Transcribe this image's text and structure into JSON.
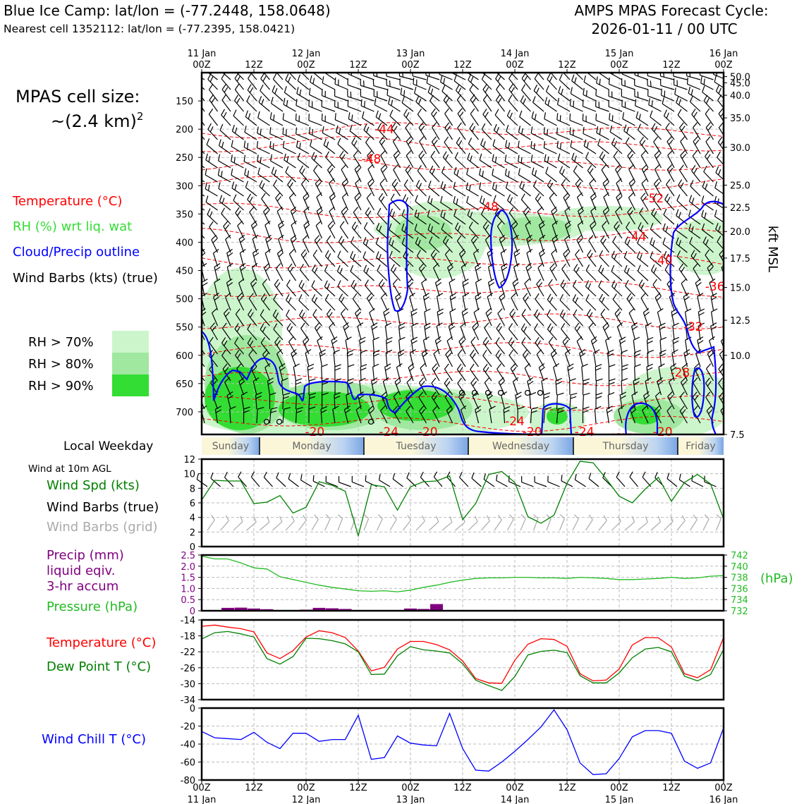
{
  "header": {
    "title": "Blue Ice Camp: lat/lon = (-77.2448, 158.0648)",
    "subtitle": "Nearest cell 1352112: lat/lon = (-77.2395, 158.0421)",
    "cycle_line1": "AMPS MPAS Forecast Cycle:",
    "cycle_line2": "2026-01-11 / 00 UTC"
  },
  "labels": {
    "cell_size_line1": "MPAS cell size:",
    "cell_size_line2": "~(2.4 km)",
    "cell_size_exp": "2",
    "legend_temperature": "Temperature (°C)",
    "legend_rh": "RH (%) wrt liq. wat",
    "legend_cloud": "Cloud/Precip outline",
    "legend_barbs": "Wind Barbs (kts) (true)",
    "rh70": "RH > 70%",
    "rh80": "RH > 80%",
    "rh90": "RH > 90%",
    "kft_axis": "kft MSL",
    "local_weekday": "Local Weekday",
    "wind10m": "Wind at 10m AGL",
    "wind_spd": "Wind Spd (kts)",
    "wind_barbs_true": "Wind Barbs (true)",
    "wind_barbs_grid": "Wind Barbs (grid)",
    "precip_1": "Precip (mm)",
    "precip_2": "liquid eqiv.",
    "precip_3": "3-hr accum",
    "pressure": "Pressure (hPa)",
    "hpa_unit": "(hPa)",
    "temp": "Temperature (°C)",
    "dew": "Dew Point T (°C)",
    "windchill": "Wind Chill T (°C)"
  },
  "colors": {
    "temperature": "#ff0000",
    "rh_text": "#33dd33",
    "cloud": "#0000ff",
    "wind_spd": "#008000",
    "precip": "#800080",
    "pressure": "#22bb22",
    "dew": "#008000",
    "windchill": "#0000ff",
    "rh70": "#ccf5cc",
    "rh80": "#a0e8a0",
    "rh90": "#33dd33",
    "grid_barbs": "#aaaaaa"
  },
  "chart_data": [
    {
      "type": "cross-section",
      "title": "Time-height cross-section",
      "x_top_labels": [
        {
          "day": "11 Jan",
          "time": "00Z"
        },
        {
          "day": "",
          "time": "12Z"
        },
        {
          "day": "12 Jan",
          "time": "00Z"
        },
        {
          "day": "",
          "time": "12Z"
        },
        {
          "day": "13 Jan",
          "time": "00Z"
        },
        {
          "day": "",
          "time": "12Z"
        },
        {
          "day": "14 Jan",
          "time": "00Z"
        },
        {
          "day": "",
          "time": "12Z"
        },
        {
          "day": "15 Jan",
          "time": "00Z"
        },
        {
          "day": "",
          "time": "12Z"
        },
        {
          "day": "16 Jan",
          "time": "00Z"
        }
      ],
      "xlim_hours": [
        0,
        120
      ],
      "pressure_ticks": [
        150,
        200,
        250,
        300,
        350,
        400,
        450,
        500,
        550,
        600,
        650,
        700
      ],
      "ylim_hpa": [
        100,
        740
      ],
      "kft_ticks": [
        {
          "p": 107.0,
          "label": "50.0"
        },
        {
          "p": 118.0,
          "label": "45.0"
        },
        {
          "p": 140.0,
          "label": "40.0"
        },
        {
          "p": 180.0,
          "label": "35.0"
        },
        {
          "p": 232.0,
          "label": "30.0"
        },
        {
          "p": 299.0,
          "label": "25.0"
        },
        {
          "p": 338.0,
          "label": "22.5"
        },
        {
          "p": 381.0,
          "label": "20.0"
        },
        {
          "p": 428.0,
          "label": "17.5"
        },
        {
          "p": 480.0,
          "label": "15.0"
        },
        {
          "p": 538.0,
          "label": "12.5"
        },
        {
          "p": 600.0,
          "label": "10.0"
        },
        {
          "p": 740.0,
          "label": "7.5"
        }
      ],
      "temperature_labels": [
        {
          "t": 42,
          "p": 200,
          "text": "-44"
        },
        {
          "t": 39,
          "p": 252,
          "text": "-48"
        },
        {
          "t": 66,
          "p": 337,
          "text": "-48"
        },
        {
          "t": 104,
          "p": 322,
          "text": "-52"
        },
        {
          "t": 100,
          "p": 390,
          "text": "-44"
        },
        {
          "t": 106,
          "p": 432,
          "text": "-40"
        },
        {
          "t": 118,
          "p": 478,
          "text": "-36"
        },
        {
          "t": 113,
          "p": 549,
          "text": "-32"
        },
        {
          "t": 110,
          "p": 630,
          "text": "-28"
        },
        {
          "t": 72,
          "p": 716,
          "text": "-24"
        },
        {
          "t": 26,
          "p": 762,
          "text": "-20"
        },
        {
          "t": 43,
          "p": 778,
          "text": "-24"
        },
        {
          "t": 52,
          "p": 774,
          "text": "-20"
        },
        {
          "t": 76,
          "p": 772,
          "text": "-20"
        },
        {
          "t": 88,
          "p": 778,
          "text": "-24"
        },
        {
          "t": 106,
          "p": 772,
          "text": "-20"
        }
      ]
    },
    {
      "type": "line",
      "title": "Wind Spd (kts)",
      "x_hours": [
        0,
        3,
        6,
        9,
        12,
        15,
        18,
        21,
        24,
        27,
        30,
        33,
        36,
        39,
        42,
        45,
        48,
        51,
        54,
        57,
        60,
        63,
        66,
        69,
        72,
        75,
        78,
        81,
        84,
        87,
        90,
        93,
        96,
        99,
        102,
        105,
        108,
        111,
        114,
        117,
        120
      ],
      "values": [
        6.4,
        9.1,
        9.0,
        9.0,
        5.9,
        6.1,
        7.0,
        4.6,
        5.4,
        8.9,
        8.4,
        7.6,
        1.5,
        8.5,
        8.2,
        5.0,
        8.2,
        8.9,
        9.0,
        9.7,
        3.7,
        5.9,
        9.9,
        10.3,
        8.8,
        4.1,
        3.2,
        4.3,
        8.7,
        11.7,
        11.5,
        9.3,
        6.9,
        6.0,
        7.9,
        9.5,
        6.2,
        8.8,
        9.9,
        8.6,
        3.8
      ],
      "ylim": [
        0,
        12
      ],
      "yticks": [
        0,
        2,
        4,
        6,
        8,
        10,
        12
      ]
    },
    {
      "type": "bar+line",
      "title": "Precip (mm) / Pressure (hPa)",
      "precip_x_hours": [
        6,
        9,
        12,
        15,
        24,
        27,
        30,
        33,
        48,
        51,
        54
      ],
      "precip_values": [
        0.13,
        0.14,
        0.1,
        0.07,
        0.05,
        0.13,
        0.11,
        0.08,
        0.1,
        0.08,
        0.3
      ],
      "precip_ylim": [
        0,
        2.5
      ],
      "precip_yticks": [
        "0",
        "0.5",
        "1.0",
        "1.5",
        "2.0",
        "2.5"
      ],
      "pressure_x_hours": [
        0,
        3,
        6,
        9,
        12,
        15,
        18,
        21,
        24,
        27,
        30,
        33,
        36,
        39,
        42,
        45,
        48,
        51,
        54,
        57,
        60,
        63,
        66,
        69,
        72,
        75,
        78,
        81,
        84,
        87,
        90,
        93,
        96,
        99,
        102,
        105,
        108,
        111,
        114,
        117,
        120
      ],
      "pressure_values": [
        741.8,
        741.3,
        741.3,
        740.6,
        739.7,
        739.5,
        738.1,
        737.6,
        737.1,
        736.6,
        736.2,
        735.9,
        735.6,
        735.5,
        735.6,
        735.4,
        735.7,
        736.2,
        736.6,
        737.1,
        737.5,
        737.8,
        737.9,
        737.9,
        738.0,
        738.0,
        737.9,
        737.9,
        737.8,
        738.0,
        737.9,
        737.8,
        737.6,
        737.6,
        737.7,
        737.8,
        738.0,
        737.8,
        737.9,
        738.2,
        738.3
      ],
      "pressure_ylim": [
        732,
        742
      ],
      "pressure_yticks": [
        732,
        734,
        736,
        738,
        740,
        742
      ]
    },
    {
      "type": "line",
      "title": "Temperature / Dew Point (°C)",
      "series": [
        {
          "name": "Temperature (°C)",
          "values": [
            -15.6,
            -15.3,
            -15.8,
            -16.2,
            -17.0,
            -22.3,
            -23.7,
            -21.7,
            -18.3,
            -16.7,
            -17.2,
            -18.4,
            -21.8,
            -26.8,
            -25.9,
            -21.3,
            -19.4,
            -19.4,
            -20.2,
            -21.5,
            -24.3,
            -28.7,
            -29.8,
            -29.9,
            -24.1,
            -20.1,
            -18.7,
            -18.9,
            -20.6,
            -27.5,
            -29.3,
            -29.1,
            -26.3,
            -20.3,
            -18.4,
            -18.5,
            -20.8,
            -27.5,
            -28.5,
            -26.5,
            -18.4
          ]
        },
        {
          "name": "Dew Point T (°C)",
          "values": [
            -18.8,
            -17.2,
            -16.9,
            -17.5,
            -18.3,
            -23.7,
            -25.1,
            -23.2,
            -18.6,
            -18.7,
            -19.2,
            -20.0,
            -22.0,
            -27.7,
            -27.6,
            -23.0,
            -20.7,
            -21.5,
            -21.8,
            -22.3,
            -25.0,
            -29.1,
            -30.5,
            -31.7,
            -28.2,
            -22.8,
            -21.9,
            -21.6,
            -22.2,
            -28.0,
            -29.8,
            -29.8,
            -27.3,
            -23.5,
            -21.3,
            -20.9,
            -22.0,
            -28.1,
            -29.3,
            -27.7,
            -21.4
          ]
        }
      ],
      "x_hours": [
        0,
        3,
        6,
        9,
        12,
        15,
        18,
        21,
        24,
        27,
        30,
        33,
        36,
        39,
        42,
        45,
        48,
        51,
        54,
        57,
        60,
        63,
        66,
        69,
        72,
        75,
        78,
        81,
        84,
        87,
        90,
        93,
        96,
        99,
        102,
        105,
        108,
        111,
        114,
        117,
        120
      ],
      "ylim": [
        -34,
        -14
      ],
      "yticks": [
        -14,
        -18,
        -22,
        -26,
        -30,
        -34
      ]
    },
    {
      "type": "line",
      "title": "Wind Chill T (°C)",
      "x_hours": [
        0,
        3,
        6,
        9,
        12,
        15,
        18,
        21,
        24,
        27,
        30,
        33,
        36,
        39,
        42,
        45,
        48,
        51,
        54,
        57,
        60,
        63,
        66,
        69,
        72,
        75,
        78,
        81,
        84,
        87,
        90,
        93,
        96,
        99,
        102,
        105,
        108,
        111,
        114,
        117,
        120
      ],
      "values": [
        -26,
        -33,
        -34,
        -35,
        -27,
        -38,
        -45,
        -28,
        -28,
        -37,
        -35,
        -35,
        -8,
        -57,
        -55,
        -31,
        -39,
        -41,
        -42,
        -6,
        -45,
        -69,
        -70,
        -60,
        -48,
        -35,
        -21,
        -2,
        -24,
        -61,
        -74,
        -73,
        -56,
        -32,
        -25,
        -25,
        -28,
        -59,
        -67,
        -61,
        -22
      ],
      "ylim": [
        -80,
        0
      ],
      "yticks": [
        0,
        -20,
        -40,
        -60,
        -80
      ]
    }
  ],
  "weekdays": [
    "Sunday",
    "Monday",
    "Tuesday",
    "Wednesday",
    "Thursday",
    "Friday"
  ],
  "bottom_axis": [
    {
      "time": "00Z",
      "day": "11 Jan"
    },
    {
      "time": "12Z",
      "day": ""
    },
    {
      "time": "00Z",
      "day": "12 Jan"
    },
    {
      "time": "12Z",
      "day": ""
    },
    {
      "time": "00Z",
      "day": "13 Jan"
    },
    {
      "time": "12Z",
      "day": ""
    },
    {
      "time": "00Z",
      "day": "14 Jan"
    },
    {
      "time": "12Z",
      "day": ""
    },
    {
      "time": "00Z",
      "day": "15 Jan"
    },
    {
      "time": "12Z",
      "day": ""
    },
    {
      "time": "00Z",
      "day": "16 Jan"
    }
  ]
}
